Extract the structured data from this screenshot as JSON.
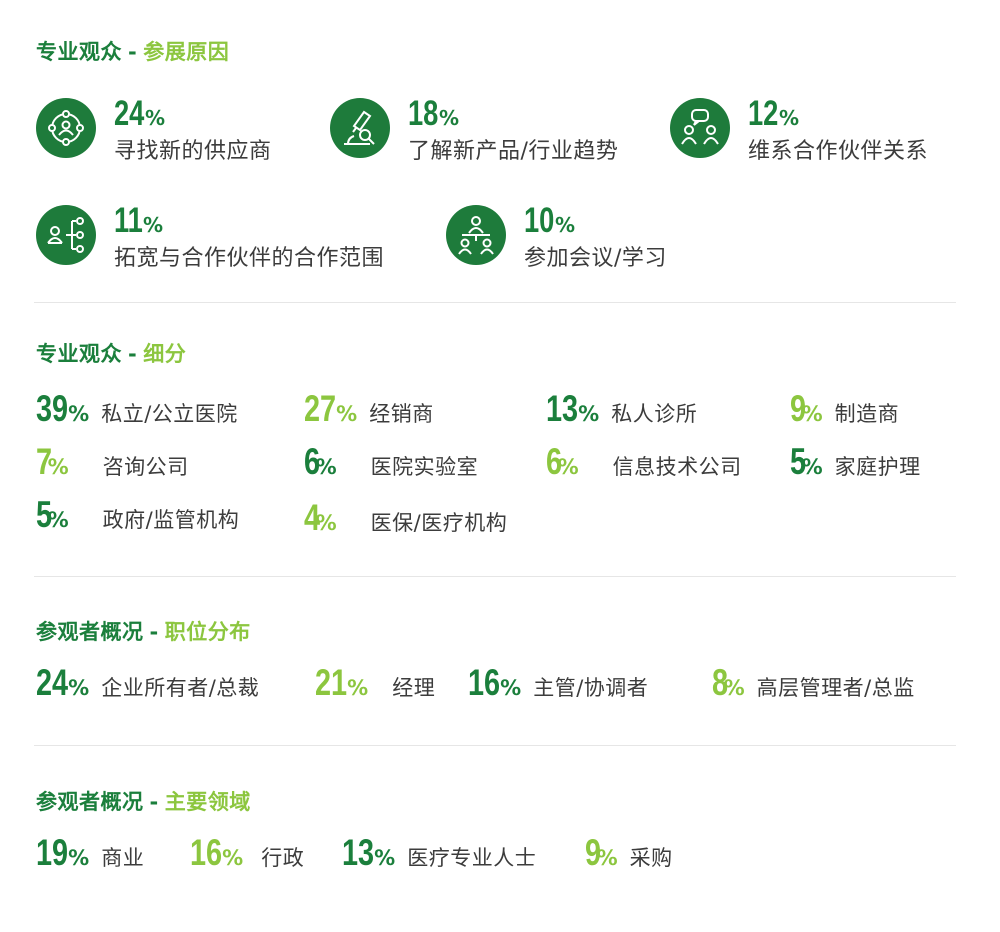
{
  "sections": {
    "reasons": {
      "main": "专业观众",
      "sep": "-",
      "sub": "参展原因"
    },
    "segments": {
      "main": "专业观众",
      "sep": "-",
      "sub": "细分"
    },
    "positions": {
      "main": "参观者概况",
      "sep": "-",
      "sub": "职位分布"
    },
    "areas": {
      "main": "参观者概况",
      "sep": "-",
      "sub": "主要领域"
    }
  },
  "percent_sign": "%",
  "reasons": [
    {
      "value": "24",
      "label": "寻找新的供应商",
      "icon": "network-person-icon"
    },
    {
      "value": "18",
      "label": "了解新产品/行业趋势",
      "icon": "microscope-icon"
    },
    {
      "value": "12",
      "label": "维系合作伙伴关系",
      "icon": "chat-people-icon"
    },
    {
      "value": "11",
      "label": "拓宽与合作伙伴的合作范围",
      "icon": "hierarchy-icon"
    },
    {
      "value": "10",
      "label": "参加会议/学习",
      "icon": "meeting-icon"
    }
  ],
  "segments": [
    {
      "value": "39",
      "label": "私立/公立医院",
      "tone": "dark"
    },
    {
      "value": "27",
      "label": "经销商",
      "tone": "light"
    },
    {
      "value": "13",
      "label": "私人诊所",
      "tone": "dark"
    },
    {
      "value": "9",
      "label": "制造商",
      "tone": "light"
    },
    {
      "value": "7",
      "label": "咨询公司",
      "tone": "light"
    },
    {
      "value": "6",
      "label": "医院实验室",
      "tone": "dark"
    },
    {
      "value": "6",
      "label": "信息技术公司",
      "tone": "light"
    },
    {
      "value": "5",
      "label": "家庭护理",
      "tone": "dark"
    },
    {
      "value": "5",
      "label": "政府/监管机构",
      "tone": "dark"
    },
    {
      "value": "4",
      "label": "医保/医疗机构",
      "tone": "light"
    }
  ],
  "positions": [
    {
      "value": "24",
      "label": "企业所有者/总裁",
      "tone": "dark"
    },
    {
      "value": "21",
      "label": "经理",
      "tone": "light"
    },
    {
      "value": "16",
      "label": "主管/协调者",
      "tone": "dark"
    },
    {
      "value": "8",
      "label": "高层管理者/总监",
      "tone": "light"
    }
  ],
  "areas": [
    {
      "value": "19",
      "label": "商业",
      "tone": "dark"
    },
    {
      "value": "16",
      "label": "行政",
      "tone": "light"
    },
    {
      "value": "13",
      "label": "医疗专业人士",
      "tone": "dark"
    },
    {
      "value": "9",
      "label": "采购",
      "tone": "light"
    }
  ],
  "colors": {
    "dark_green": "#1b7f3c",
    "light_green": "#8cc63f",
    "text": "#3c3c3c"
  }
}
